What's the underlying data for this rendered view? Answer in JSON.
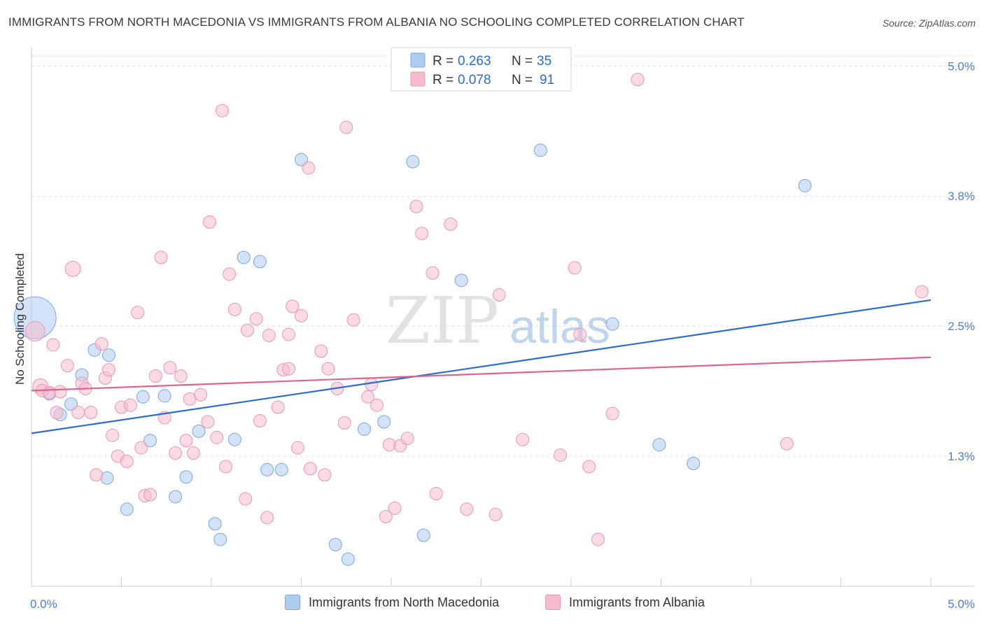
{
  "header": {
    "title": "IMMIGRANTS FROM NORTH MACEDONIA VS IMMIGRANTS FROM ALBANIA NO SCHOOLING COMPLETED CORRELATION CHART",
    "source": "Source: ZipAtlas.com"
  },
  "watermark": {
    "zip": "ZIP",
    "atlas": "atlas"
  },
  "chart_data": {
    "type": "scatter",
    "ylabel": "No Schooling Completed",
    "xlim": [
      0,
      5
    ],
    "ylim": [
      0,
      5.15
    ],
    "x_tick_labels": [
      "0.0%",
      "5.0%"
    ],
    "y_ticks": [
      1.25,
      2.5,
      3.75,
      5.0
    ],
    "y_tick_labels": [
      "1.3%",
      "2.5%",
      "3.8%",
      "5.0%"
    ],
    "grid": true,
    "legend_position": "top-center",
    "series": [
      {
        "name": "Immigrants from North Macedonia",
        "color": "#7aa6e8",
        "fill": "#aecbf0",
        "line_color": "#2a6dd1",
        "r": "0.263",
        "n": "35",
        "trend": {
          "x": [
            0,
            5
          ],
          "y": [
            1.47,
            2.75
          ]
        },
        "points": [
          [
            0.02,
            2.58,
            30
          ],
          [
            0.1,
            1.85,
            9
          ],
          [
            0.16,
            1.65,
            9
          ],
          [
            0.22,
            1.75,
            9
          ],
          [
            0.28,
            2.03,
            9
          ],
          [
            0.35,
            2.27,
            9
          ],
          [
            0.43,
            2.22,
            9
          ],
          [
            0.42,
            1.04,
            9
          ],
          [
            0.53,
            0.74,
            9
          ],
          [
            0.62,
            1.82,
            9
          ],
          [
            0.66,
            1.4,
            9
          ],
          [
            0.74,
            1.83,
            9
          ],
          [
            0.8,
            0.86,
            9
          ],
          [
            0.86,
            1.05,
            9
          ],
          [
            0.93,
            1.49,
            9
          ],
          [
            1.02,
            0.6,
            9
          ],
          [
            1.05,
            0.45,
            9
          ],
          [
            1.13,
            1.41,
            9
          ],
          [
            1.18,
            3.16,
            9
          ],
          [
            1.27,
            3.12,
            9
          ],
          [
            1.31,
            1.12,
            9
          ],
          [
            1.39,
            1.12,
            9
          ],
          [
            1.5,
            4.1,
            9
          ],
          [
            1.69,
            0.4,
            9
          ],
          [
            1.76,
            0.26,
            9
          ],
          [
            1.85,
            1.51,
            9
          ],
          [
            1.96,
            1.58,
            9
          ],
          [
            2.12,
            4.08,
            9
          ],
          [
            2.18,
            0.49,
            9
          ],
          [
            2.39,
            2.94,
            9
          ],
          [
            2.83,
            4.19,
            9
          ],
          [
            3.23,
            2.52,
            9
          ],
          [
            3.49,
            1.36,
            9
          ],
          [
            3.68,
            1.18,
            9
          ],
          [
            4.3,
            3.85,
            9
          ]
        ]
      },
      {
        "name": "Immigrants from Albania",
        "color": "#eb96b3",
        "fill": "#f6bccd",
        "line_color": "#e0628f",
        "r": "0.078",
        "n": "91",
        "trend": {
          "x": [
            0,
            5
          ],
          "y": [
            1.88,
            2.2
          ]
        },
        "points": [
          [
            0.02,
            2.45,
            14
          ],
          [
            0.05,
            1.92,
            11
          ],
          [
            0.06,
            1.88,
            9
          ],
          [
            0.1,
            1.86,
            9
          ],
          [
            0.12,
            2.32,
            9
          ],
          [
            0.14,
            1.67,
            9
          ],
          [
            0.16,
            1.87,
            9
          ],
          [
            0.2,
            2.12,
            9
          ],
          [
            0.23,
            3.05,
            11
          ],
          [
            0.26,
            1.67,
            9
          ],
          [
            0.28,
            1.95,
            9
          ],
          [
            0.3,
            1.9,
            9
          ],
          [
            0.33,
            1.67,
            9
          ],
          [
            0.36,
            1.07,
            9
          ],
          [
            0.39,
            2.33,
            9
          ],
          [
            0.41,
            2.0,
            9
          ],
          [
            0.43,
            2.08,
            9
          ],
          [
            0.45,
            1.45,
            9
          ],
          [
            0.48,
            1.25,
            9
          ],
          [
            0.5,
            1.72,
            9
          ],
          [
            0.53,
            1.2,
            9
          ],
          [
            0.55,
            1.74,
            9
          ],
          [
            0.59,
            2.63,
            9
          ],
          [
            0.61,
            1.33,
            9
          ],
          [
            0.63,
            0.87,
            9
          ],
          [
            0.66,
            0.88,
            9
          ],
          [
            0.69,
            2.02,
            9
          ],
          [
            0.72,
            3.16,
            9
          ],
          [
            0.74,
            1.62,
            9
          ],
          [
            0.77,
            2.1,
            9
          ],
          [
            0.8,
            1.28,
            9
          ],
          [
            0.83,
            2.02,
            9
          ],
          [
            0.86,
            1.4,
            9
          ],
          [
            0.88,
            1.8,
            9
          ],
          [
            0.9,
            1.28,
            9
          ],
          [
            0.94,
            1.84,
            9
          ],
          [
            0.98,
            1.58,
            9
          ],
          [
            0.99,
            3.5,
            9
          ],
          [
            1.03,
            1.43,
            9
          ],
          [
            1.06,
            4.57,
            9
          ],
          [
            1.08,
            1.15,
            9
          ],
          [
            1.1,
            3.0,
            9
          ],
          [
            1.13,
            2.66,
            9
          ],
          [
            1.19,
            0.84,
            9
          ],
          [
            1.2,
            2.46,
            9
          ],
          [
            1.25,
            2.57,
            9
          ],
          [
            1.27,
            1.59,
            9
          ],
          [
            1.31,
            0.66,
            9
          ],
          [
            1.32,
            2.41,
            9
          ],
          [
            1.37,
            1.72,
            9
          ],
          [
            1.4,
            2.08,
            9
          ],
          [
            1.43,
            2.09,
            9
          ],
          [
            1.43,
            2.42,
            9
          ],
          [
            1.45,
            2.69,
            9
          ],
          [
            1.48,
            1.33,
            9
          ],
          [
            1.5,
            2.6,
            9
          ],
          [
            1.54,
            4.02,
            9
          ],
          [
            1.55,
            1.13,
            9
          ],
          [
            1.61,
            2.26,
            9
          ],
          [
            1.63,
            1.07,
            9
          ],
          [
            1.65,
            2.09,
            9
          ],
          [
            1.7,
            1.9,
            9
          ],
          [
            1.74,
            1.57,
            9
          ],
          [
            1.75,
            4.41,
            9
          ],
          [
            1.79,
            2.56,
            9
          ],
          [
            1.87,
            1.82,
            9
          ],
          [
            1.89,
            1.94,
            9
          ],
          [
            1.92,
            1.74,
            9
          ],
          [
            1.97,
            0.67,
            9
          ],
          [
            1.99,
            1.36,
            9
          ],
          [
            2.02,
            0.75,
            9
          ],
          [
            2.05,
            1.35,
            9
          ],
          [
            2.09,
            1.42,
            9
          ],
          [
            2.14,
            3.65,
            9
          ],
          [
            2.17,
            3.39,
            9
          ],
          [
            2.23,
            3.01,
            9
          ],
          [
            2.25,
            0.89,
            9
          ],
          [
            2.33,
            3.48,
            9
          ],
          [
            2.42,
            0.74,
            9
          ],
          [
            2.58,
            0.69,
            9
          ],
          [
            2.6,
            2.8,
            9
          ],
          [
            2.73,
            1.41,
            9
          ],
          [
            2.94,
            1.26,
            9
          ],
          [
            3.02,
            3.06,
            9
          ],
          [
            3.05,
            2.42,
            9
          ],
          [
            3.1,
            1.15,
            9
          ],
          [
            3.15,
            0.45,
            9
          ],
          [
            3.23,
            1.66,
            9
          ],
          [
            3.37,
            4.87,
            9
          ],
          [
            4.2,
            1.37,
            9
          ],
          [
            4.95,
            2.83,
            9
          ]
        ]
      }
    ]
  }
}
